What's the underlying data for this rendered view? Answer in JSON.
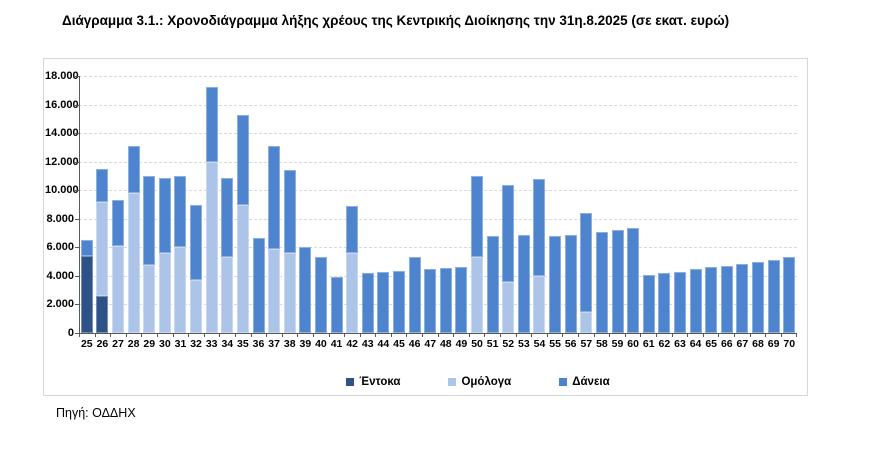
{
  "page": {
    "title": "Διάγραμμα 3.1.: Χρονοδιάγραμμα λήξης χρέους της Κεντρικής Διοίκησης την 31η.8.2025 (σε εκατ. ευρώ)",
    "source": "Πηγή: ΟΔΔΗΧ"
  },
  "colors": {
    "entoka": "#2e5287",
    "omologa": "#abc4e8",
    "daneia": "#4e84ce",
    "gridline": "#d9d9d9",
    "axis": "#595959"
  },
  "chart_data": {
    "type": "bar",
    "stacked": true,
    "title": "Διάγραμμα 3.1.: Χρονοδιάγραμμα λήξης χρέους της Κεντρικής Διοίκησης την 31η.8.2025 (σε εκατ. ευρώ)",
    "unit": "εκατ. ευρώ",
    "xlabel": "",
    "ylabel": "",
    "ylim": [
      0,
      18000
    ],
    "y_tick_labels": [
      "0",
      "2.000",
      "4.000",
      "6.000",
      "8.000",
      "10.000",
      "12.000",
      "14.000",
      "16.000",
      "18.000"
    ],
    "grid": "horizontal-dashed",
    "legend_position": "bottom-center",
    "categories": [
      "25",
      "26",
      "27",
      "28",
      "29",
      "30",
      "31",
      "32",
      "33",
      "34",
      "35",
      "36",
      "37",
      "38",
      "39",
      "40",
      "41",
      "42",
      "43",
      "44",
      "45",
      "46",
      "47",
      "48",
      "49",
      "50",
      "51",
      "52",
      "53",
      "54",
      "55",
      "56",
      "57",
      "58",
      "59",
      "60",
      "61",
      "62",
      "63",
      "64",
      "65",
      "66",
      "67",
      "68",
      "69",
      "70"
    ],
    "series": [
      {
        "name": "Έντοκα",
        "color": "#2e5287",
        "values": [
          5400,
          2600,
          0,
          0,
          0,
          0,
          0,
          0,
          0,
          0,
          0,
          0,
          0,
          0,
          0,
          0,
          0,
          0,
          0,
          0,
          0,
          0,
          0,
          0,
          0,
          0,
          0,
          0,
          0,
          0,
          0,
          0,
          0,
          0,
          0,
          0,
          0,
          0,
          0,
          0,
          0,
          0,
          0,
          0,
          0,
          0
        ]
      },
      {
        "name": "Ομόλογα",
        "color": "#abc4e8",
        "values": [
          0,
          6600,
          6100,
          9800,
          4750,
          5600,
          6000,
          3700,
          12000,
          5300,
          8950,
          0,
          5900,
          5600,
          0,
          0,
          0,
          5600,
          0,
          0,
          0,
          0,
          0,
          0,
          0,
          5350,
          0,
          3600,
          0,
          4000,
          0,
          0,
          1500,
          0,
          0,
          0,
          0,
          0,
          0,
          0,
          0,
          0,
          0,
          0,
          0,
          0
        ]
      },
      {
        "name": "Δάνεια",
        "color": "#4e84ce",
        "values": [
          1150,
          2300,
          3200,
          3300,
          6250,
          5250,
          5000,
          5300,
          5250,
          5550,
          6350,
          6650,
          7200,
          5850,
          6000,
          5300,
          3950,
          3300,
          4200,
          4300,
          4350,
          5300,
          4500,
          4550,
          4650,
          5650,
          6800,
          6750,
          6850,
          6800,
          6800,
          6850,
          6900,
          7050,
          7200,
          7350,
          4050,
          4200,
          4300,
          4450,
          4600,
          4700,
          4850,
          5000,
          5100,
          5300
        ]
      }
    ]
  }
}
